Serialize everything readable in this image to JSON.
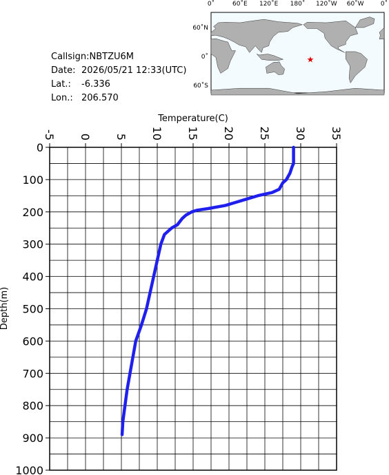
{
  "station": {
    "callsign": "Callsign:NBTZU6M",
    "date_label": "Date:",
    "date": "2026/05/21 12:33(UTC)",
    "lat_label": "Lat.:",
    "lat": "-6.336",
    "lon_label": "Lon.:",
    "lon": "206.570"
  },
  "map": {
    "lon_labels": [
      "0˚",
      "60˚E",
      "120˚E",
      "180˚",
      "120˚W",
      "60˚W",
      "0˚"
    ],
    "lat_labels": [
      "60˚N",
      "0˚",
      "60˚S"
    ]
  },
  "chart_data": {
    "type": "line",
    "x_label": "Temperature(C)",
    "y_label": "Depth(m)",
    "color": "#2020ee",
    "x": [
      29.0,
      29.0,
      28.8,
      28.5,
      28.0,
      27.5,
      27.0,
      26.0,
      24.0,
      22.5,
      21.0,
      19.5,
      17.0,
      15.5,
      14.8,
      14.0,
      13.5,
      12.8,
      12.0,
      11.0,
      10.5,
      10.0,
      9.5,
      9.0,
      8.5,
      7.8,
      7.0,
      6.6,
      6.2,
      5.8,
      5.5,
      5.2,
      5.1
    ],
    "values": [
      0,
      50,
      60,
      80,
      100,
      110,
      130,
      140,
      150,
      160,
      170,
      180,
      190,
      195,
      200,
      210,
      220,
      240,
      250,
      270,
      300,
      350,
      400,
      450,
      500,
      550,
      600,
      650,
      700,
      750,
      800,
      850,
      890
    ],
    "xlim": [
      -5,
      35
    ],
    "xticks": [
      -5,
      0,
      5,
      10,
      15,
      20,
      25,
      30,
      35
    ],
    "ylim": [
      0,
      1000
    ],
    "yticks": [
      0,
      100,
      200,
      300,
      400,
      500,
      600,
      700,
      800,
      900,
      1000
    ],
    "y_inverted": true,
    "grid": true,
    "x_grid": [
      -2.5,
      2.5,
      7.5,
      12.5,
      17.5,
      22.5,
      27.5,
      32.5
    ],
    "y_grid": [
      50,
      150,
      250,
      350,
      450,
      550,
      650,
      750,
      850,
      950
    ]
  }
}
